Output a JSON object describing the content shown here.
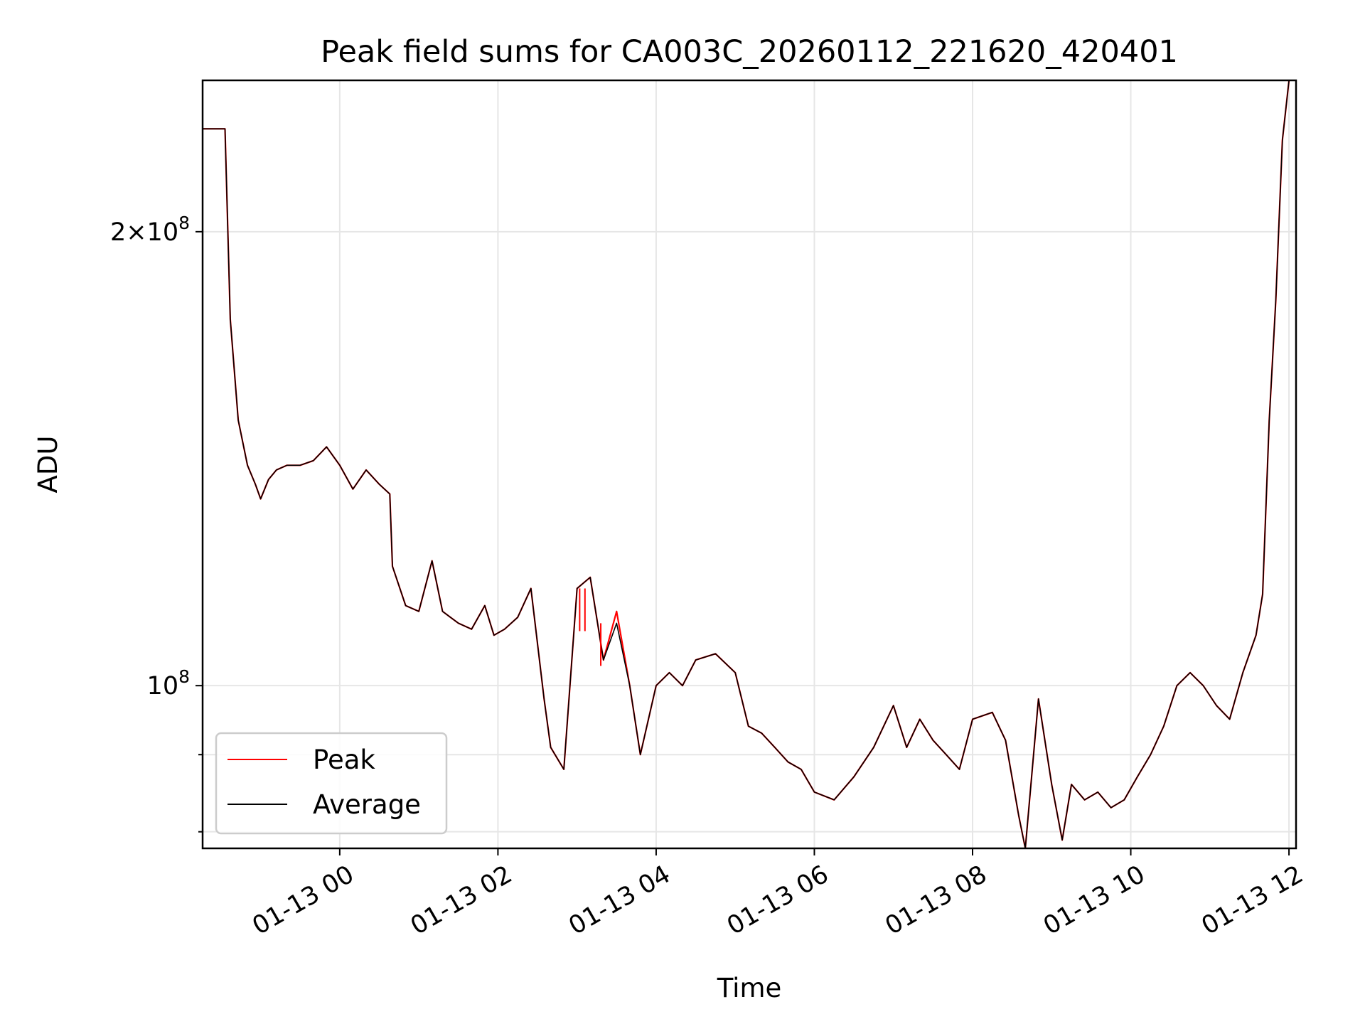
{
  "chart_data": {
    "type": "line",
    "title": "Peak field sums for CA003C_20260112_221620_420401",
    "xlabel": "Time",
    "ylabel": "ADU",
    "x_axis": {
      "type": "time",
      "range": [
        "2026-01-12 22:16",
        "2026-01-13 12:00"
      ],
      "ticks": [
        "2026-01-13 00:00",
        "2026-01-13 02:00",
        "2026-01-13 04:00",
        "2026-01-13 06:00",
        "2026-01-13 08:00",
        "2026-01-13 10:00",
        "2026-01-13 12:00"
      ],
      "tick_labels": [
        "01-13 00",
        "01-13 02",
        "01-13 04",
        "01-13 06",
        "01-13 08",
        "01-13 10",
        "01-13 12"
      ]
    },
    "y_axis": {
      "scale": "log",
      "range": [
        78000000,
        252000000
      ],
      "major_ticks": [
        100000000,
        200000000
      ],
      "major_tick_labels": [
        {
          "mantissa": "",
          "base": "10",
          "exp": "8"
        },
        {
          "mantissa": "2",
          "base": "10",
          "exp": "8"
        }
      ],
      "minor_ticks": [
        80000000,
        90000000
      ]
    },
    "grid": true,
    "legend_position": "lower-left",
    "x": [
      "2026-01-12 22:16",
      "2026-01-12 22:26",
      "2026-01-12 22:33",
      "2026-01-12 22:37",
      "2026-01-12 22:43",
      "2026-01-12 22:50",
      "2026-01-12 22:56",
      "2026-01-12 23:00",
      "2026-01-12 23:06",
      "2026-01-12 23:12",
      "2026-01-12 23:20",
      "2026-01-12 23:30",
      "2026-01-12 23:40",
      "2026-01-12 23:50",
      "2026-01-13 00:00",
      "2026-01-13 00:10",
      "2026-01-13 00:20",
      "2026-01-13 00:30",
      "2026-01-13 00:38",
      "2026-01-13 00:40",
      "2026-01-13 00:50",
      "2026-01-13 01:00",
      "2026-01-13 01:10",
      "2026-01-13 01:18",
      "2026-01-13 01:30",
      "2026-01-13 01:40",
      "2026-01-13 01:50",
      "2026-01-13 01:57",
      "2026-01-13 02:05",
      "2026-01-13 02:15",
      "2026-01-13 02:25",
      "2026-01-13 02:35",
      "2026-01-13 02:40",
      "2026-01-13 02:50",
      "2026-01-13 03:00",
      "2026-01-13 03:10",
      "2026-01-13 03:20",
      "2026-01-13 03:30",
      "2026-01-13 03:40",
      "2026-01-13 03:48",
      "2026-01-13 04:00",
      "2026-01-13 04:10",
      "2026-01-13 04:20",
      "2026-01-13 04:30",
      "2026-01-13 04:45",
      "2026-01-13 05:00",
      "2026-01-13 05:10",
      "2026-01-13 05:20",
      "2026-01-13 05:30",
      "2026-01-13 05:40",
      "2026-01-13 05:50",
      "2026-01-13 06:00",
      "2026-01-13 06:15",
      "2026-01-13 06:30",
      "2026-01-13 06:45",
      "2026-01-13 07:00",
      "2026-01-13 07:10",
      "2026-01-13 07:20",
      "2026-01-13 07:30",
      "2026-01-13 07:40",
      "2026-01-13 07:50",
      "2026-01-13 08:00",
      "2026-01-13 08:15",
      "2026-01-13 08:25",
      "2026-01-13 08:35",
      "2026-01-13 08:40",
      "2026-01-13 08:50",
      "2026-01-13 09:00",
      "2026-01-13 09:08",
      "2026-01-13 09:15",
      "2026-01-13 09:25",
      "2026-01-13 09:35",
      "2026-01-13 09:45",
      "2026-01-13 09:55",
      "2026-01-13 10:05",
      "2026-01-13 10:15",
      "2026-01-13 10:25",
      "2026-01-13 10:35",
      "2026-01-13 10:45",
      "2026-01-13 10:55",
      "2026-01-13 11:05",
      "2026-01-13 11:15",
      "2026-01-13 11:25",
      "2026-01-13 11:35",
      "2026-01-13 11:40",
      "2026-01-13 11:45",
      "2026-01-13 11:50",
      "2026-01-13 11:55",
      "2026-01-13 12:00"
    ],
    "series": [
      {
        "name": "Peak",
        "color": "#ff0000",
        "values": [
          234000000,
          234000000,
          234000000,
          175000000,
          150000000,
          140000000,
          136000000,
          133000000,
          137000000,
          139000000,
          140000000,
          140000000,
          141000000,
          144000000,
          140000000,
          135000000,
          139000000,
          136000000,
          134000000,
          120000000,
          113000000,
          112000000,
          121000000,
          112000000,
          110000000,
          109000000,
          113000000,
          108000000,
          109000000,
          111000000,
          116000000,
          98000000,
          91000000,
          88000000,
          116000000,
          118000000,
          104000000,
          112000000,
          100000000,
          90000000,
          100000000,
          102000000,
          100000000,
          104000000,
          105000000,
          102000000,
          94000000,
          93000000,
          91000000,
          89000000,
          88000000,
          85000000,
          84000000,
          87000000,
          91000000,
          97000000,
          91000000,
          95000000,
          92000000,
          90000000,
          88000000,
          95000000,
          96000000,
          92000000,
          82000000,
          78000000,
          98000000,
          86000000,
          79000000,
          86000000,
          84000000,
          85000000,
          83000000,
          84000000,
          87000000,
          90000000,
          94000000,
          100000000,
          102000000,
          100000000,
          97000000,
          95000000,
          102000000,
          108000000,
          115000000,
          150000000,
          180000000,
          230000000,
          252000000
        ]
      },
      {
        "name": "Average",
        "color": "#000000",
        "values": [
          234000000,
          234000000,
          234000000,
          175000000,
          150000000,
          140000000,
          136000000,
          133000000,
          137000000,
          139000000,
          140000000,
          140000000,
          141000000,
          144000000,
          140000000,
          135000000,
          139000000,
          136000000,
          134000000,
          120000000,
          113000000,
          112000000,
          121000000,
          112000000,
          110000000,
          109000000,
          113000000,
          108000000,
          109000000,
          111000000,
          116000000,
          98000000,
          91000000,
          88000000,
          116000000,
          118000000,
          104000000,
          110000000,
          100000000,
          90000000,
          100000000,
          102000000,
          100000000,
          104000000,
          105000000,
          102000000,
          94000000,
          93000000,
          91000000,
          89000000,
          88000000,
          85000000,
          84000000,
          87000000,
          91000000,
          97000000,
          91000000,
          95000000,
          92000000,
          90000000,
          88000000,
          95000000,
          96000000,
          92000000,
          82000000,
          78000000,
          98000000,
          86000000,
          79000000,
          86000000,
          84000000,
          85000000,
          83000000,
          84000000,
          87000000,
          90000000,
          94000000,
          100000000,
          102000000,
          100000000,
          97000000,
          95000000,
          102000000,
          108000000,
          115000000,
          150000000,
          180000000,
          230000000,
          252000000
        ]
      }
    ],
    "annotations": [
      {
        "series": "Peak",
        "x": "2026-01-13 03:02",
        "y": 116000000
      },
      {
        "series": "Peak",
        "x": "2026-01-13 03:06",
        "y": 116000000
      },
      {
        "series": "Peak",
        "x": "2026-01-13 03:18",
        "y": 110000000
      }
    ]
  }
}
